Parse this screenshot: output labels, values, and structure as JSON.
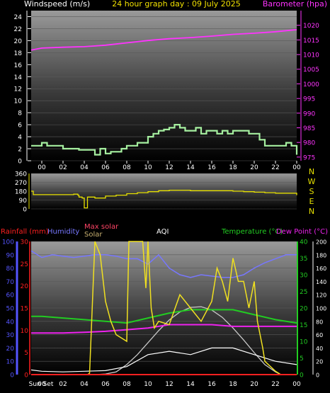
{
  "header": {
    "windspeed_label": "Windspeed (m/s)",
    "title": "24 hour graph day : 09 July 2025",
    "barometer_label": "Barometer (hpa)"
  },
  "mid_header": {
    "rainfall_label": "Rainfall (mm)",
    "humidity_label": "Humidity",
    "max_solar_label": "Max solar",
    "solar_label": "Solar",
    "aqi_label": "AQI",
    "temperature_label": "Temperature (°C)",
    "dewpoint_label": "Dew Point (°C)"
  },
  "colors": {
    "wind": "#a6f0a0",
    "barometer": "#ff33ff",
    "direction": "#e6e000",
    "rain": "#ff2020",
    "humidity": "#7777ff",
    "solar": "#f0e020",
    "max_solar": "#c8c8c8",
    "aqi": "#ffffff",
    "temperature": "#22cc22",
    "dewpoint": "#ee22ee",
    "axis_left_blue": "#5555ff",
    "axis_green": "#22cc22"
  },
  "chart_data": [
    {
      "type": "line",
      "id": "wind_baro",
      "x_tick_labels": [
        "00",
        "02",
        "04",
        "06",
        "08",
        "10",
        "12",
        "14",
        "16",
        "18",
        "20",
        "22",
        "00"
      ],
      "xlim": [
        -1,
        24
      ],
      "left_axis": {
        "label": "Windspeed (m/s)",
        "ylim": [
          0,
          25
        ],
        "ticks": [
          0,
          2,
          4,
          6,
          8,
          10,
          12,
          14,
          16,
          18,
          20,
          22,
          24
        ]
      },
      "right_axis": {
        "label": "Barometer (hpa)",
        "ylim": [
          973.75,
          1025
        ],
        "ticks": [
          975,
          980,
          985,
          990,
          995,
          1000,
          1005,
          1010,
          1015,
          1020
        ]
      },
      "series": [
        {
          "name": "Windspeed (m/s)",
          "axis": "left",
          "step": true,
          "x": [
            -1,
            -0.5,
            0,
            0.5,
            2,
            2.5,
            3.5,
            4,
            5,
            5.5,
            6,
            6.5,
            7,
            7.5,
            8,
            9,
            10,
            10.5,
            11,
            11.5,
            12,
            12.5,
            13,
            13.5,
            14,
            14.5,
            15,
            15.5,
            16,
            16.5,
            17,
            17.5,
            18,
            18.5,
            19,
            19.5,
            20,
            20.5,
            21,
            22,
            23,
            23.5,
            24
          ],
          "y": [
            2.5,
            2.5,
            3,
            2.5,
            2,
            2,
            1.8,
            1.8,
            1,
            2,
            1.2,
            1.5,
            1.5,
            2,
            2.5,
            3,
            4,
            4.5,
            5,
            5.2,
            5.5,
            6,
            5.5,
            5,
            5,
            5.5,
            4.5,
            5,
            5,
            4.5,
            5,
            4.5,
            5,
            5,
            5,
            4.5,
            4.5,
            3.5,
            2.5,
            2.5,
            3,
            2.5,
            1
          ]
        },
        {
          "name": "Barometer (hpa)",
          "axis": "right",
          "x": [
            -1,
            0,
            2,
            4,
            6,
            8,
            10,
            12,
            14,
            16,
            18,
            20,
            22,
            24
          ],
          "y": [
            1011.5,
            1012.2,
            1012.5,
            1012.7,
            1013.2,
            1014.0,
            1014.8,
            1015.4,
            1015.8,
            1016.3,
            1016.9,
            1017.3,
            1017.8,
            1018.5
          ]
        }
      ]
    },
    {
      "type": "line",
      "id": "wind_direction",
      "xlim": [
        -1,
        24
      ],
      "left_axis": {
        "ylim": [
          0,
          360
        ],
        "ticks": [
          0,
          90,
          180,
          270,
          360
        ]
      },
      "right_axis_labels": [
        "N",
        "W",
        "S",
        "E",
        "N"
      ],
      "series": [
        {
          "name": "Wind direction",
          "step": true,
          "x": [
            -1,
            -0.8,
            1,
            3,
            3.4,
            3.5,
            3.8,
            4,
            4.3,
            5,
            6,
            7,
            8,
            9,
            10,
            11,
            12,
            14,
            16,
            18,
            19,
            20,
            21,
            22,
            23,
            24
          ],
          "y": [
            180,
            145,
            145,
            150,
            140,
            120,
            110,
            10,
            120,
            110,
            130,
            140,
            155,
            165,
            175,
            185,
            190,
            185,
            185,
            180,
            175,
            170,
            165,
            160,
            160,
            140
          ]
        }
      ]
    },
    {
      "type": "line",
      "id": "rain_hum_solar_aqi_temp",
      "x_tick_labels": [
        "Sun Set",
        "00",
        "02",
        "04",
        "06",
        "08",
        "10",
        "12",
        "14",
        "16",
        "18",
        "20",
        "22",
        "00"
      ],
      "xlim": [
        -1,
        24
      ],
      "left_axis_humidity": {
        "ylim": [
          0,
          100
        ],
        "ticks": [
          0,
          10,
          20,
          30,
          40,
          50,
          60,
          70,
          80,
          90,
          100
        ]
      },
      "left_axis_rain": {
        "ylim": [
          0,
          30
        ],
        "ticks": [
          0,
          5,
          10,
          15,
          20,
          25,
          30
        ]
      },
      "right_axis_temperature": {
        "ylim": [
          0,
          40
        ],
        "ticks": [
          0,
          5,
          10,
          15,
          20,
          25,
          30,
          35,
          40
        ]
      },
      "right_axis_solar": {
        "ylim": [
          0,
          200
        ],
        "ticks": [
          0,
          20,
          40,
          60,
          80,
          100,
          120,
          140,
          160,
          180,
          200
        ]
      },
      "series": [
        {
          "name": "Rainfall (mm)",
          "x": [
            -1,
            24
          ],
          "y": [
            0,
            0
          ]
        },
        {
          "name": "Humidity",
          "x": [
            -1,
            0,
            1,
            2,
            3,
            4,
            5,
            6,
            7,
            8,
            9,
            10,
            11,
            12,
            13,
            14,
            15,
            16,
            17,
            18,
            19,
            20,
            21,
            22,
            23,
            24
          ],
          "y": [
            93,
            88,
            90,
            89,
            88,
            89,
            90,
            90,
            89,
            87,
            87,
            83,
            90,
            80,
            75,
            73,
            75,
            74,
            73,
            73,
            75,
            80,
            84,
            87,
            90,
            90
          ]
        },
        {
          "name": "Max solar",
          "x": [
            -1,
            4.6,
            5,
            6,
            7,
            8,
            9,
            10,
            11,
            12,
            13,
            14,
            15,
            16,
            17,
            18,
            19,
            20,
            21,
            22,
            22.5,
            24
          ],
          "y": [
            0,
            0,
            0,
            1,
            4,
            15,
            30,
            48,
            66,
            82,
            94,
            101,
            102,
            97,
            86,
            70,
            52,
            33,
            15,
            4,
            0,
            0
          ]
        },
        {
          "name": "Solar",
          "x": [
            -1,
            4.3,
            4.5,
            5,
            5.5,
            6,
            6.5,
            7,
            8,
            8.2,
            8.6,
            9,
            9.5,
            9.8,
            10,
            10.3,
            10.6,
            11,
            12,
            13,
            14,
            15,
            16,
            16.5,
            17,
            17.5,
            18,
            18.5,
            19,
            19.5,
            20,
            20.3,
            20.8,
            21,
            22,
            22.5,
            24
          ],
          "y": [
            0,
            0,
            2,
            200,
            180,
            110,
            80,
            60,
            50,
            200,
            200,
            200,
            200,
            130,
            200,
            100,
            70,
            80,
            75,
            120,
            100,
            80,
            110,
            160,
            140,
            110,
            175,
            140,
            140,
            100,
            140,
            80,
            40,
            20,
            5,
            0,
            0
          ]
        },
        {
          "name": "AQI",
          "x": [
            -1,
            0,
            2,
            4,
            6,
            8,
            10,
            12,
            14,
            16,
            18,
            20,
            22,
            24
          ],
          "y": [
            7,
            5,
            4,
            5,
            6,
            12,
            30,
            35,
            30,
            40,
            40,
            30,
            20,
            15
          ]
        },
        {
          "name": "Temperature (°C)",
          "x": [
            -1,
            0,
            2,
            4,
            6,
            8,
            10,
            12,
            14,
            16,
            18,
            20,
            22,
            24
          ],
          "y": [
            17.5,
            17.5,
            17,
            16.5,
            16,
            15.5,
            17,
            18.5,
            19.5,
            19.5,
            19.5,
            18,
            16.5,
            15.5
          ]
        },
        {
          "name": "Dew Point (°C)",
          "x": [
            -1,
            0,
            2,
            4,
            6,
            8,
            10,
            12,
            14,
            16,
            18,
            20,
            22,
            24
          ],
          "y": [
            12.5,
            12.5,
            12.5,
            12.7,
            13,
            13.5,
            14,
            15,
            15,
            15,
            14.5,
            14.5,
            14.5,
            14.5
          ]
        }
      ]
    }
  ]
}
